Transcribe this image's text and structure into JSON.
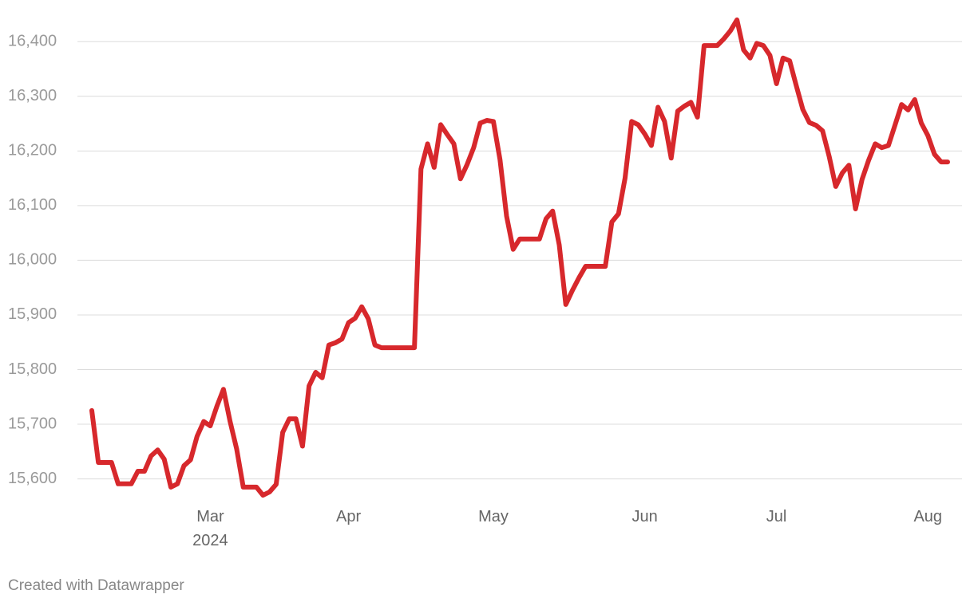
{
  "chart_data": {
    "type": "line",
    "categories": [
      null,
      null,
      null,
      null,
      null,
      null,
      null,
      null,
      null,
      null,
      null,
      null,
      null,
      null,
      null,
      null,
      null,
      null,
      "Mar\n2024",
      null,
      null,
      null,
      null,
      null,
      null,
      null,
      null,
      null,
      null,
      null,
      null,
      null,
      null,
      null,
      null,
      null,
      null,
      null,
      null,
      "Apr",
      null,
      null,
      null,
      null,
      null,
      null,
      null,
      null,
      null,
      null,
      null,
      null,
      null,
      null,
      null,
      null,
      null,
      null,
      null,
      null,
      null,
      "May",
      null,
      null,
      null,
      null,
      null,
      null,
      null,
      null,
      null,
      null,
      null,
      null,
      null,
      null,
      null,
      null,
      null,
      null,
      null,
      null,
      null,
      null,
      "Jun",
      null,
      null,
      null,
      null,
      null,
      null,
      null,
      null,
      null,
      null,
      null,
      null,
      null,
      null,
      null,
      null,
      null,
      null,
      null,
      "Jul",
      null,
      null,
      null,
      null,
      null,
      null,
      null,
      null,
      null,
      null,
      null,
      null,
      null,
      null,
      null,
      null,
      null,
      null,
      null,
      null,
      null,
      null,
      "Aug",
      null,
      null,
      null
    ],
    "series": [
      {
        "color": "#d7282c",
        "values": [
          15725,
          15630,
          15630,
          15630,
          15591,
          15591,
          15591,
          15614,
          15614,
          15642,
          15653,
          15636,
          15585,
          15591,
          15624,
          15635,
          15678,
          15705,
          15697,
          15733,
          15764,
          15705,
          15655,
          15585,
          15585,
          15585,
          15570,
          15576,
          15590,
          15685,
          15710,
          15710,
          15660,
          15770,
          15795,
          15785,
          15845,
          15849,
          15856,
          15886,
          15894,
          15915,
          15893,
          15845,
          15840,
          15840,
          15840,
          15840,
          15840,
          15840,
          16167,
          16213,
          16170,
          16248,
          16230,
          16213,
          16149,
          16175,
          16206,
          16251,
          16256,
          16254,
          16184,
          16081,
          16020,
          16039,
          16039,
          16039,
          16039,
          16076,
          16090,
          16028,
          15919,
          15945,
          15968,
          15989,
          15989,
          15989,
          15989,
          16070,
          16085,
          16150,
          16254,
          16248,
          16231,
          16210,
          16280,
          16254,
          16187,
          16273,
          16282,
          16289,
          16262,
          16393,
          16393,
          16393,
          16405,
          16420,
          16440,
          16385,
          16370,
          16397,
          16393,
          16375,
          16323,
          16370,
          16365,
          16320,
          16276,
          16252,
          16247,
          16237,
          16190,
          16135,
          16160,
          16174,
          16094,
          16148,
          16183,
          16213,
          16206,
          16210,
          16247,
          16285,
          16275,
          16294,
          16251,
          16228,
          16194,
          16180,
          16180
        ]
      }
    ],
    "ylim": [
      15560,
      16450
    ],
    "yticks": [
      {
        "value": 15600,
        "label": "15,600"
      },
      {
        "value": 15700,
        "label": "15,700"
      },
      {
        "value": 15800,
        "label": "15,800"
      },
      {
        "value": 15900,
        "label": "15,900"
      },
      {
        "value": 16000,
        "label": "16,000"
      },
      {
        "value": 16100,
        "label": "16,100"
      },
      {
        "value": 16200,
        "label": "16,200"
      },
      {
        "value": 16300,
        "label": "16,300"
      },
      {
        "value": 16400,
        "label": "16,400"
      }
    ],
    "grid": true,
    "footer": "Created with Datawrapper"
  }
}
